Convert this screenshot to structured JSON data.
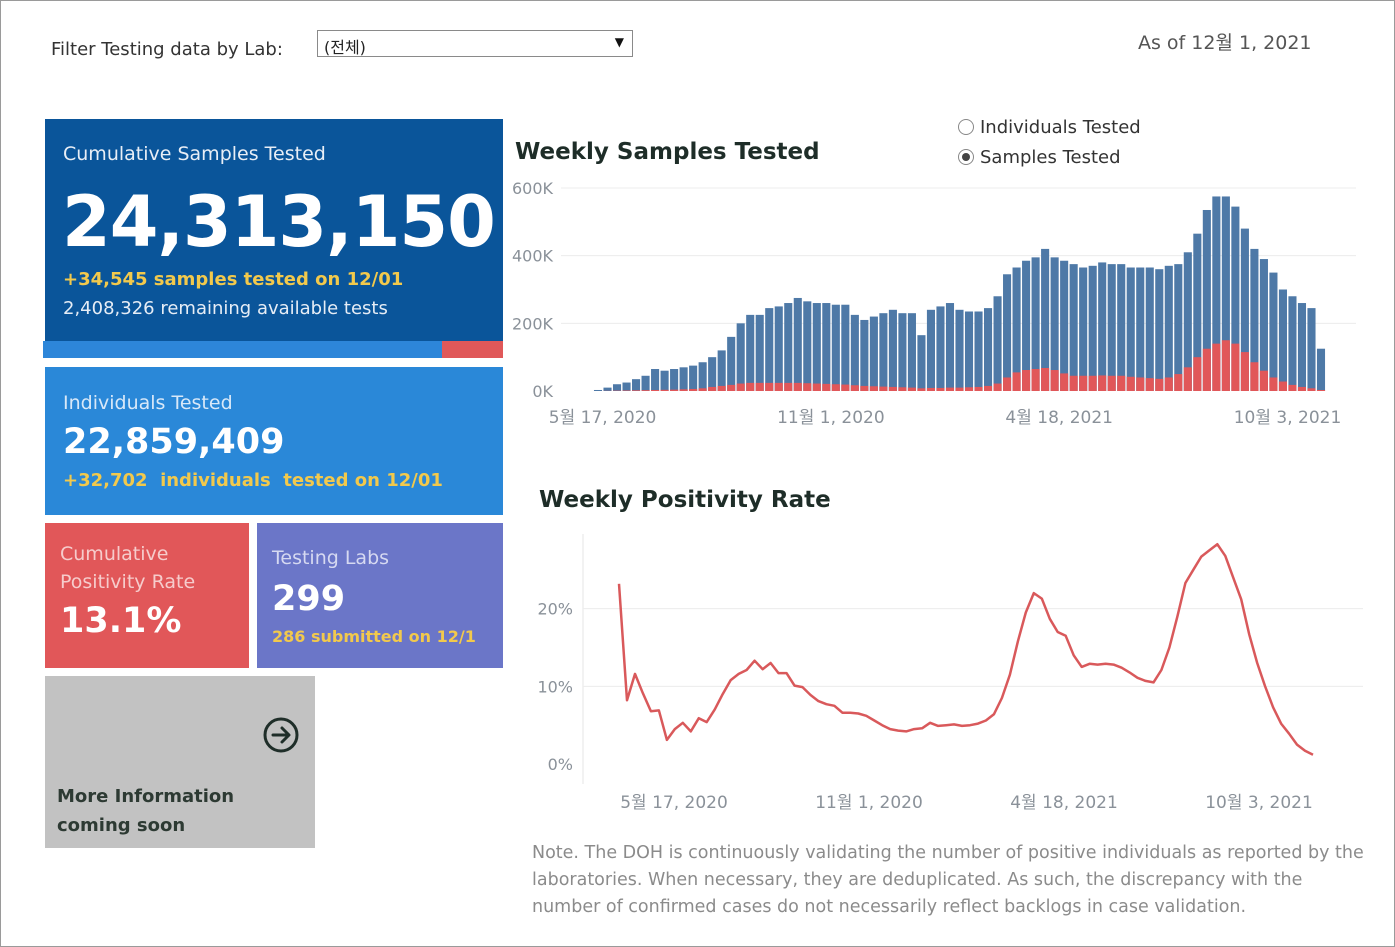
{
  "filter": {
    "label": "Filter Testing data by Lab:",
    "selected": "(전체)",
    "arrow_icon": "triangle-down-icon"
  },
  "as_of": "As of 12월 1, 2021",
  "cards": {
    "samples": {
      "label": "Cumulative Samples Tested",
      "value": "24,313,150",
      "delta": "+34,545 samples tested on 12/01",
      "remaining": "2,408,326 remaining available tests",
      "used_fraction": 0.868
    },
    "individuals": {
      "label": "Individuals Tested",
      "value": "22,859,409",
      "delta": "+32,702  individuals  tested on 12/01"
    },
    "positivity": {
      "label": "Cumulative Positivity Rate",
      "value": "13.1%"
    },
    "labs": {
      "label": "Testing Labs",
      "value": "299",
      "submitted": "286 submitted on 12/1"
    },
    "more": {
      "label": "More Information coming soon",
      "icon": "arrow-right-circle-icon"
    }
  },
  "toggle": {
    "options": [
      "Individuals Tested",
      "Samples Tested"
    ],
    "selected": "Samples Tested"
  },
  "colors": {
    "samples": "#4e79a7",
    "positives": "#e15759",
    "positivity_line": "#d9595b"
  },
  "note": "Note. The DOH is continuously validating the number of positive individuals as reported by the laboratories. When necessary, they are deduplicated. As such, the discrepancy with the number of confirmed cases do not necessarily reflect backlogs in case validation.",
  "chart_data": [
    {
      "type": "bar",
      "title": "Weekly Samples Tested",
      "x_tick_labels": [
        "5월 17, 2020",
        "11월 1, 2020",
        "4월 18, 2021",
        "10월 3, 2021"
      ],
      "y_tick_labels": [
        "0K",
        "200K",
        "400K",
        "600K"
      ],
      "ylim": [
        0,
        600000
      ],
      "grid": true,
      "series": [
        {
          "name": "Samples Tested",
          "values": [
            3000,
            10000,
            20000,
            25000,
            35000,
            45000,
            65000,
            60000,
            65000,
            70000,
            75000,
            85000,
            100000,
            120000,
            160000,
            200000,
            225000,
            225000,
            245000,
            250000,
            260000,
            275000,
            265000,
            260000,
            260000,
            255000,
            255000,
            225000,
            210000,
            220000,
            230000,
            240000,
            230000,
            230000,
            165000,
            240000,
            250000,
            260000,
            240000,
            235000,
            235000,
            245000,
            280000,
            345000,
            365000,
            385000,
            395000,
            420000,
            395000,
            385000,
            375000,
            365000,
            370000,
            380000,
            375000,
            375000,
            365000,
            365000,
            365000,
            360000,
            370000,
            375000,
            410000,
            465000,
            535000,
            575000,
            575000,
            545000,
            480000,
            420000,
            390000,
            350000,
            300000,
            280000,
            260000,
            245000,
            125000
          ]
        },
        {
          "name": "Positives",
          "values": [
            0,
            500,
            1000,
            1500,
            2000,
            2500,
            3000,
            3500,
            4000,
            5000,
            6000,
            8000,
            12000,
            15000,
            18000,
            22000,
            24000,
            24000,
            24000,
            24000,
            24000,
            24000,
            23000,
            22000,
            21000,
            20000,
            19000,
            17000,
            15000,
            14000,
            13000,
            12000,
            11000,
            10000,
            8000,
            9000,
            9000,
            10000,
            10000,
            11000,
            12000,
            15000,
            22000,
            40000,
            55000,
            62000,
            65000,
            68000,
            62000,
            52000,
            45000,
            45000,
            45000,
            46000,
            45000,
            45000,
            42000,
            40000,
            38000,
            36000,
            40000,
            50000,
            70000,
            100000,
            125000,
            140000,
            150000,
            140000,
            115000,
            85000,
            60000,
            40000,
            28000,
            18000,
            12000,
            8000,
            3000
          ]
        }
      ]
    },
    {
      "type": "line",
      "title": "Weekly Positivity Rate",
      "x_tick_labels": [
        "5월 17, 2020",
        "11월 1, 2020",
        "4월 18, 2021",
        "10월 3, 2021"
      ],
      "y_tick_labels": [
        "0%",
        "10%",
        "20%"
      ],
      "ylim": [
        0,
        30
      ],
      "grid": true,
      "series": [
        {
          "name": "Positivity Rate",
          "values": [
            23.2,
            8.2,
            11.6,
            9.1,
            6.8,
            6.9,
            3.1,
            4.5,
            5.3,
            4.2,
            5.9,
            5.4,
            7.0,
            9.0,
            10.8,
            11.6,
            12.1,
            13.3,
            12.2,
            13.0,
            11.7,
            11.7,
            10.1,
            9.9,
            8.9,
            8.1,
            7.7,
            7.5,
            6.6,
            6.6,
            6.5,
            6.2,
            5.6,
            5.0,
            4.5,
            4.3,
            4.2,
            4.5,
            4.6,
            5.3,
            4.9,
            5.0,
            5.1,
            4.9,
            5.0,
            5.2,
            5.6,
            6.4,
            8.5,
            11.5,
            15.8,
            19.5,
            22.0,
            21.3,
            18.7,
            17.0,
            16.5,
            14.0,
            12.5,
            12.9,
            12.8,
            12.9,
            12.8,
            12.4,
            11.8,
            11.1,
            10.7,
            10.5,
            12.1,
            15.0,
            19.0,
            23.3,
            25.0,
            26.7,
            27.5,
            28.3,
            26.8,
            24.0,
            21.2,
            16.7,
            13.0,
            10.0,
            7.3,
            5.2,
            3.9,
            2.5,
            1.7,
            1.2
          ]
        }
      ]
    }
  ]
}
